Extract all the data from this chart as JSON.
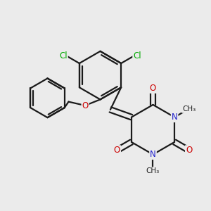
{
  "background_color": "#ebebeb",
  "bond_color": "#1a1a1a",
  "atom_colors": {
    "N": "#2222cc",
    "O": "#cc0000",
    "Cl": "#00aa00"
  },
  "figsize": [
    3.0,
    3.0
  ],
  "dpi": 100
}
